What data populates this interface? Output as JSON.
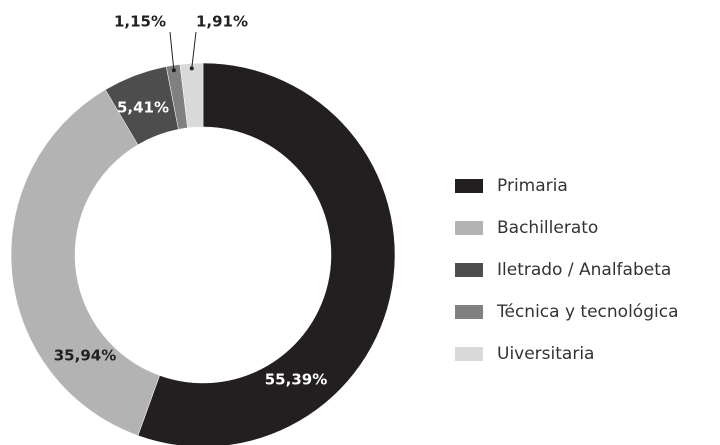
{
  "chart_data": {
    "type": "donut",
    "categories": [
      "Primaria",
      "Bachillerato",
      "Iletrado / Analfabeta",
      "Técnica y tecnológica",
      "Uiversitaria"
    ],
    "values": [
      55.39,
      35.94,
      5.41,
      1.15,
      1.91
    ],
    "value_labels": [
      "55,39%",
      "35,94%",
      "5,41%",
      "1,15%",
      "1,91%"
    ],
    "colors": [
      "#231f20",
      "#b3b3b3",
      "#4d4d4d",
      "#808080",
      "#d9d9d9"
    ],
    "legend": "right"
  }
}
